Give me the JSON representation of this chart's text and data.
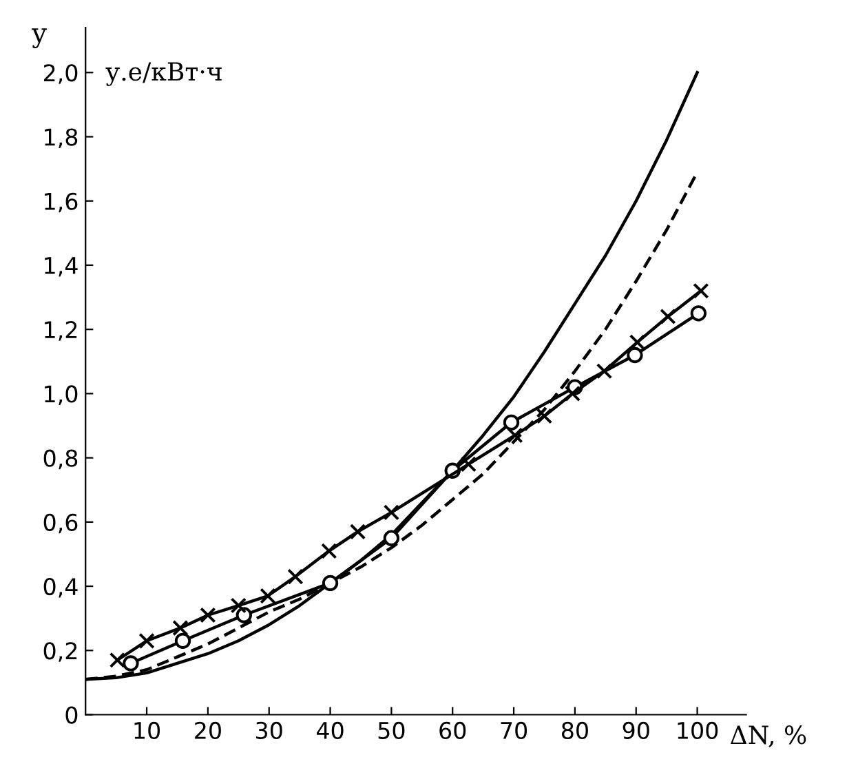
{
  "chart_data": {
    "type": "line",
    "xlabel": "ΔN, %",
    "ylabel": "у",
    "annotations": [
      "у.е/кВт·ч"
    ],
    "xlim": [
      0,
      108
    ],
    "ylim": [
      0,
      2.14
    ],
    "xticks": [
      10,
      20,
      30,
      40,
      50,
      60,
      70,
      80,
      90,
      100
    ],
    "yticks": [
      {
        "value": 0,
        "label": "0"
      },
      {
        "value": 0.2,
        "label": "0,2"
      },
      {
        "value": 0.4,
        "label": "0,4"
      },
      {
        "value": 0.6,
        "label": "0,6"
      },
      {
        "value": 0.8,
        "label": "0,8"
      },
      {
        "value": 1.0,
        "label": "1,0"
      },
      {
        "value": 1.2,
        "label": "1,2"
      },
      {
        "value": 1.4,
        "label": "1,4"
      },
      {
        "value": 1.6,
        "label": "1,6"
      },
      {
        "value": 1.8,
        "label": "1,8"
      },
      {
        "value": 2.0,
        "label": "2,0"
      }
    ],
    "grid": false,
    "legend": false,
    "series": [
      {
        "color": "#000000",
        "marker": "none",
        "line_style": "solid",
        "x": [
          0,
          5,
          10,
          15,
          20,
          25,
          30,
          35,
          40,
          45,
          50,
          55,
          60,
          65,
          70,
          75,
          80,
          85,
          90,
          95,
          100
        ],
        "values": [
          0.11,
          0.115,
          0.13,
          0.16,
          0.19,
          0.23,
          0.28,
          0.34,
          0.41,
          0.48,
          0.56,
          0.66,
          0.76,
          0.87,
          0.99,
          1.13,
          1.28,
          1.43,
          1.6,
          1.79,
          2.0
        ]
      },
      {
        "color": "#000000",
        "marker": "none",
        "line_style": "dashed",
        "x": [
          0,
          5,
          10,
          15,
          20,
          25,
          30,
          35,
          40,
          45,
          50,
          55,
          60,
          65,
          70,
          75,
          80,
          85,
          90,
          95,
          100
        ],
        "values": [
          0.11,
          0.12,
          0.14,
          0.18,
          0.22,
          0.27,
          0.32,
          0.36,
          0.41,
          0.46,
          0.52,
          0.59,
          0.67,
          0.75,
          0.85,
          0.95,
          1.07,
          1.2,
          1.35,
          1.51,
          1.69
        ]
      },
      {
        "color": "#000000",
        "marker": "circle",
        "line_style": "solid",
        "x": [
          7.4,
          15.9,
          25.9,
          40,
          50,
          60,
          69.6,
          80,
          89.8,
          100.2
        ],
        "values": [
          0.16,
          0.23,
          0.31,
          0.41,
          0.55,
          0.76,
          0.91,
          1.02,
          1.12,
          1.25
        ]
      },
      {
        "color": "#000000",
        "marker": "cross",
        "line_style": "solid",
        "x": [
          5.2,
          10,
          15.5,
          20,
          25,
          29.8,
          34.3,
          39.8,
          44.5,
          50,
          62.6,
          70.2,
          75,
          79.6,
          84.8,
          90.2,
          95.2,
          100.6
        ],
        "values": [
          0.17,
          0.23,
          0.27,
          0.31,
          0.34,
          0.37,
          0.43,
          0.51,
          0.57,
          0.63,
          0.78,
          0.87,
          0.93,
          1.0,
          1.07,
          1.16,
          1.24,
          1.32
        ]
      }
    ]
  }
}
